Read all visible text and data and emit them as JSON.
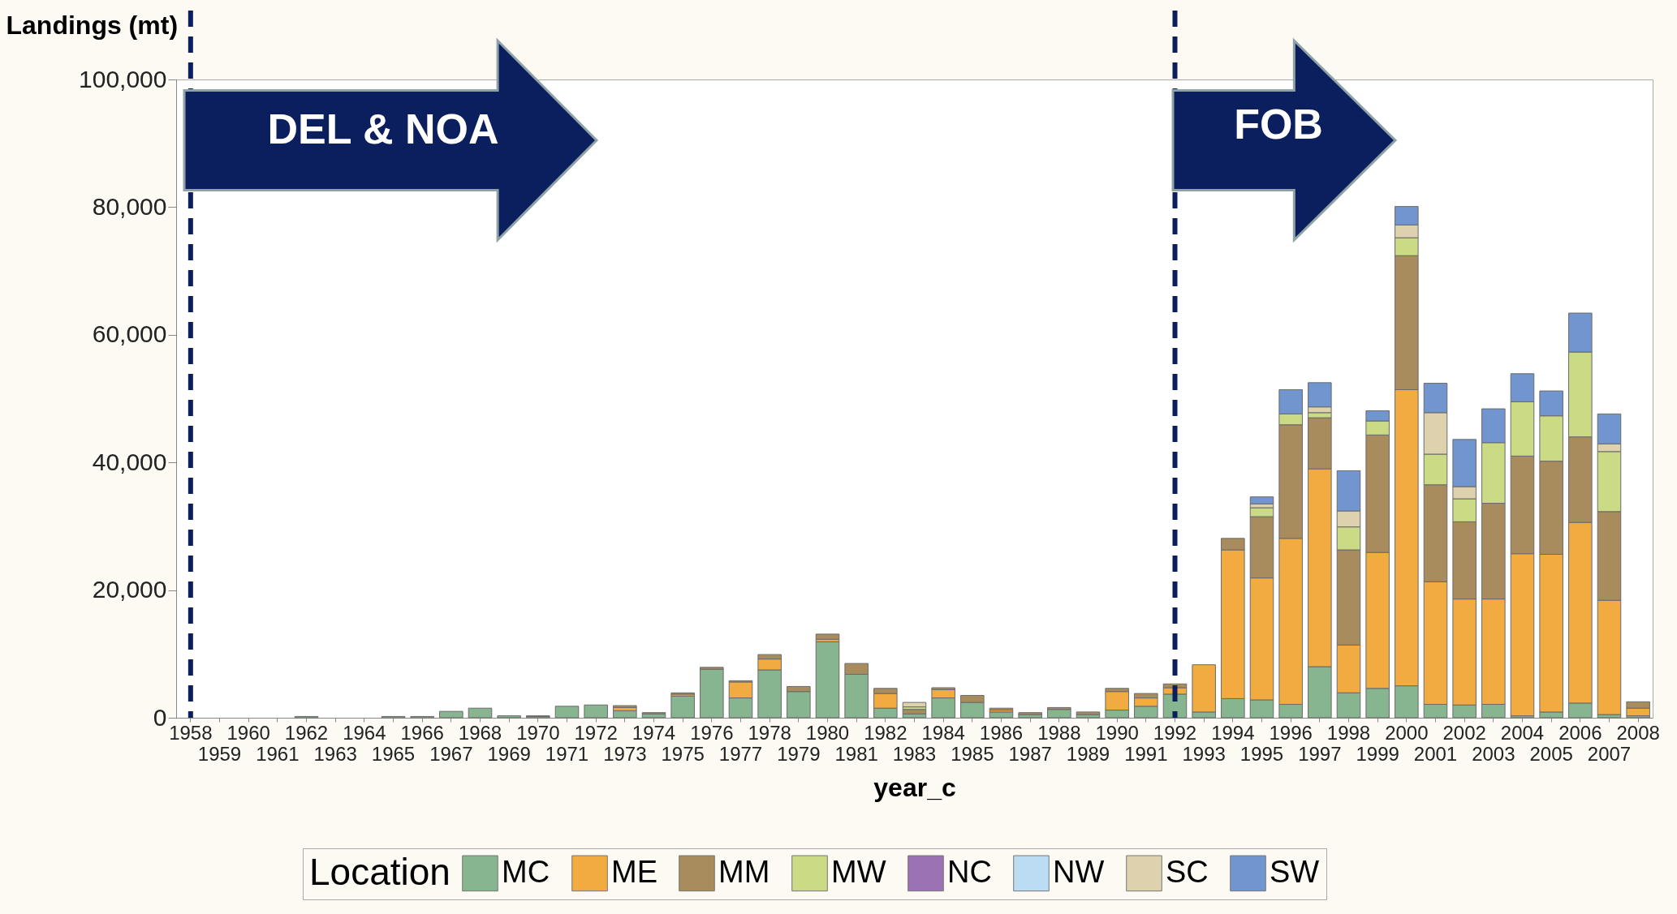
{
  "chart_data": {
    "type": "bar",
    "stacked": true,
    "xlabel": "year_c",
    "ylabel": "Landings (mt)",
    "legend_title": "Location",
    "legend": "bottom",
    "grid": false,
    "categories": [
      "1958",
      "1959",
      "1960",
      "1961",
      "1962",
      "1963",
      "1964",
      "1965",
      "1966",
      "1967",
      "1968",
      "1969",
      "1970",
      "1971",
      "1972",
      "1973",
      "1974",
      "1975",
      "1976",
      "1977",
      "1978",
      "1979",
      "1980",
      "1981",
      "1982",
      "1983",
      "1984",
      "1985",
      "1986",
      "1987",
      "1988",
      "1989",
      "1990",
      "1991",
      "1992",
      "1993",
      "1994",
      "1995",
      "1996",
      "1997",
      "1998",
      "1999",
      "2000",
      "2001",
      "2002",
      "2003",
      "2004",
      "2005",
      "2006",
      "2007",
      "2008"
    ],
    "ylim": [
      0,
      100000
    ],
    "yticks": [
      0,
      {
        "value": 20000,
        "label": "20,000"
      },
      {
        "value": 40000,
        "label": "40,000"
      },
      {
        "value": 60000,
        "label": "60,000"
      },
      {
        "value": 80000,
        "label": "80,000"
      },
      {
        "value": 100000,
        "label": "100,000"
      }
    ],
    "series": [
      {
        "name": "MC",
        "color": "#86b58f",
        "values": [
          0,
          0,
          0,
          0,
          200,
          0,
          0,
          200,
          200,
          1000,
          1500,
          300,
          200,
          1800,
          2000,
          1100,
          600,
          3400,
          7600,
          3100,
          7500,
          4100,
          11900,
          6800,
          1500,
          600,
          3100,
          2400,
          900,
          500,
          1300,
          500,
          1200,
          1800,
          3700,
          900,
          3000,
          2800,
          2100,
          8000,
          3900,
          4600,
          5000,
          2100,
          2000,
          2100,
          300,
          900,
          2300,
          500,
          300
        ]
      },
      {
        "name": "ME",
        "color": "#f2ab40",
        "values": [
          0,
          0,
          0,
          0,
          0,
          0,
          0,
          0,
          0,
          0,
          0,
          0,
          0,
          0,
          0,
          500,
          0,
          300,
          0,
          2500,
          1700,
          0,
          400,
          0,
          2300,
          0,
          1300,
          0,
          300,
          0,
          0,
          0,
          2900,
          1300,
          1000,
          7400,
          23300,
          19100,
          26000,
          31000,
          7500,
          21300,
          46400,
          19200,
          16600,
          16500,
          25400,
          24700,
          28300,
          17900,
          1200
        ]
      },
      {
        "name": "MM",
        "color": "#a88c5e",
        "values": [
          0,
          0,
          0,
          0,
          0,
          0,
          0,
          0,
          0,
          0,
          0,
          0,
          100,
          0,
          0,
          300,
          200,
          200,
          300,
          200,
          700,
          800,
          800,
          1700,
          800,
          700,
          300,
          1100,
          300,
          300,
          300,
          400,
          500,
          700,
          600,
          0,
          1800,
          9600,
          17800,
          8000,
          14900,
          18400,
          21000,
          15200,
          12100,
          15000,
          15300,
          14600,
          13400,
          13900,
          1000
        ]
      },
      {
        "name": "MW",
        "color": "#cbdb85",
        "values": [
          0,
          0,
          0,
          0,
          0,
          0,
          0,
          0,
          0,
          0,
          0,
          0,
          0,
          0,
          0,
          0,
          0,
          0,
          0,
          0,
          0,
          0,
          0,
          0,
          0,
          400,
          0,
          0,
          0,
          0,
          0,
          0,
          0,
          0,
          0,
          0,
          0,
          1400,
          1700,
          800,
          3600,
          2200,
          2800,
          4800,
          3600,
          9500,
          8500,
          7100,
          13300,
          9400,
          0
        ]
      },
      {
        "name": "NC",
        "color": "#9b72b4",
        "values": [
          0,
          0,
          0,
          0,
          0,
          0,
          0,
          0,
          0,
          0,
          0,
          0,
          0,
          0,
          0,
          0,
          0,
          0,
          0,
          0,
          0,
          0,
          0,
          0,
          0,
          0,
          0,
          0,
          0,
          0,
          0,
          0,
          0,
          0,
          0,
          0,
          0,
          0,
          0,
          0,
          0,
          0,
          0,
          0,
          0,
          0,
          0,
          0,
          0,
          0,
          0
        ]
      },
      {
        "name": "NW",
        "color": "#bcdcf4",
        "values": [
          0,
          0,
          0,
          0,
          0,
          0,
          0,
          0,
          0,
          0,
          0,
          0,
          0,
          0,
          0,
          0,
          0,
          0,
          0,
          0,
          0,
          0,
          0,
          0,
          0,
          0,
          0,
          0,
          0,
          0,
          0,
          0,
          0,
          0,
          0,
          0,
          0,
          0,
          0,
          0,
          0,
          0,
          0,
          0,
          0,
          0,
          0,
          0,
          0,
          0,
          0
        ]
      },
      {
        "name": "SC",
        "color": "#ddd2ad",
        "values": [
          0,
          0,
          0,
          0,
          0,
          0,
          0,
          0,
          0,
          0,
          0,
          0,
          0,
          0,
          0,
          0,
          0,
          0,
          0,
          0,
          0,
          0,
          0,
          0,
          0,
          700,
          0,
          0,
          0,
          0,
          0,
          0,
          0,
          0,
          0,
          0,
          0,
          600,
          0,
          900,
          2500,
          0,
          2000,
          6500,
          1900,
          0,
          0,
          0,
          0,
          1200,
          0
        ]
      },
      {
        "name": "SW",
        "color": "#7195cf",
        "values": [
          0,
          0,
          0,
          0,
          0,
          0,
          0,
          0,
          0,
          0,
          0,
          0,
          0,
          0,
          0,
          0,
          0,
          0,
          0,
          0,
          0,
          0,
          0,
          0,
          0,
          0,
          0,
          0,
          0,
          0,
          0,
          0,
          0,
          0,
          0,
          0,
          0,
          1100,
          3800,
          3800,
          6300,
          1600,
          2900,
          4600,
          7400,
          5300,
          4400,
          3900,
          6100,
          4700,
          0
        ]
      }
    ],
    "ref_lines": [
      {
        "axis": "x",
        "value": "1958",
        "color": "#0b1f5e",
        "line_style": "dashed"
      },
      {
        "axis": "x",
        "value": "1992",
        "color": "#0b1f5e",
        "line_style": "dashed"
      }
    ],
    "annotations": [
      "DEL & NOA",
      "FOB"
    ]
  }
}
